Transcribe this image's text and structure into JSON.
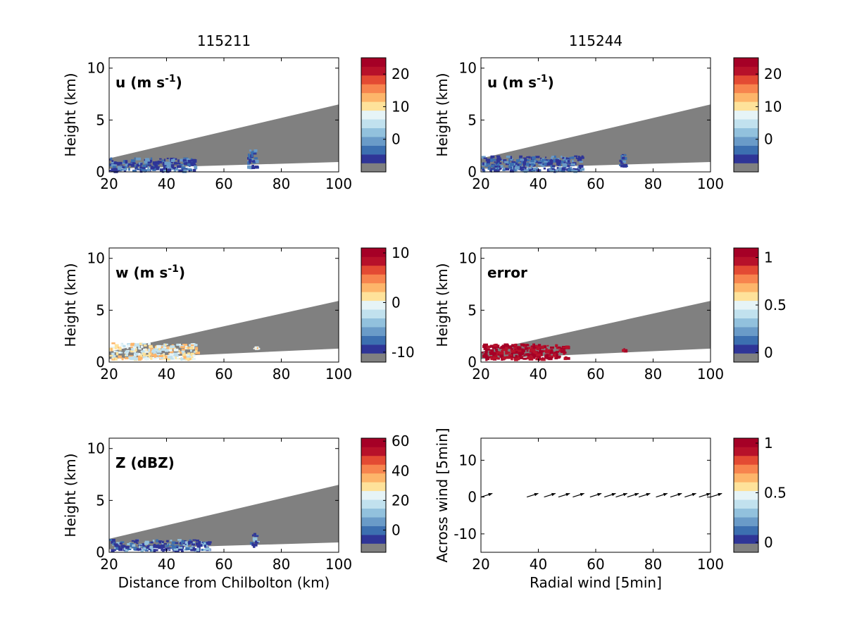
{
  "colors": {
    "gray": "#808080",
    "scale": [
      "#2f3597",
      "#3c6fb0",
      "#6a9bc8",
      "#92c1dd",
      "#c1e1ee",
      "#e6f4f7",
      "#fee29a",
      "#fdb56a",
      "#f7844e",
      "#e34a33",
      "#b7112a",
      "#a50026"
    ]
  },
  "figure": {
    "column_titles": [
      "115211",
      "115244"
    ]
  },
  "chart_data": [
    {
      "id": "u-115211",
      "type": "heatmap",
      "annotation": "u (m s⁻¹)",
      "ylabel": "Height (km)",
      "xlabel": "",
      "xlim": [
        20,
        100
      ],
      "ylim": [
        0,
        11
      ],
      "xticks": [
        "20",
        "40",
        "60",
        "80",
        "100"
      ],
      "yticks": [
        "0",
        "5",
        "10"
      ],
      "colorbar": {
        "range": [
          -10,
          25
        ],
        "ticks": [
          "20",
          "10",
          "0"
        ],
        "tick_values": [
          20,
          10,
          0
        ]
      },
      "beam_sector": {
        "lower": [
          0.3,
          0.95
        ],
        "upper": [
          1.3,
          6.5
        ]
      },
      "data_regions": [
        {
          "field": "strong-negative",
          "x_range": [
            20,
            50
          ],
          "height_range": [
            0.2,
            1.4
          ]
        },
        {
          "field": "strong-negative",
          "x_range": [
            68,
            71
          ],
          "height_range": [
            0.4,
            2.2
          ]
        }
      ]
    },
    {
      "id": "u-115244",
      "type": "heatmap",
      "annotation": "u (m s⁻¹)",
      "ylabel": "Height (km)",
      "xlabel": "",
      "xlim": [
        20,
        100
      ],
      "ylim": [
        0,
        11
      ],
      "xticks": [
        "20",
        "40",
        "60",
        "80",
        "100"
      ],
      "yticks": [
        "0",
        "5",
        "10"
      ],
      "colorbar": {
        "range": [
          -10,
          25
        ],
        "ticks": [
          "20",
          "10",
          "0"
        ],
        "tick_values": [
          20,
          10,
          0
        ]
      },
      "beam_sector": {
        "lower": [
          0.3,
          0.95
        ],
        "upper": [
          1.3,
          6.5
        ]
      },
      "data_regions": [
        {
          "field": "strong-negative",
          "x_range": [
            20,
            55
          ],
          "height_range": [
            0.2,
            1.6
          ]
        },
        {
          "field": "strong-negative",
          "x_range": [
            68,
            70
          ],
          "height_range": [
            0.6,
            2.0
          ]
        }
      ]
    },
    {
      "id": "w-115211",
      "type": "heatmap",
      "annotation": "w (m s⁻¹)",
      "ylabel": "Height (km)",
      "xlabel": "",
      "xlim": [
        20,
        100
      ],
      "ylim": [
        0,
        11
      ],
      "xticks": [
        "20",
        "40",
        "60",
        "80",
        "100"
      ],
      "yticks": [
        "0",
        "5",
        "10"
      ],
      "colorbar": {
        "range": [
          -12,
          11
        ],
        "ticks": [
          "10",
          "0",
          "-10"
        ],
        "tick_values": [
          10,
          0,
          -10
        ]
      },
      "beam_sector": {
        "lower": [
          0.3,
          1.3
        ],
        "upper": [
          1.0,
          5.9
        ]
      },
      "data_regions": [
        {
          "field": "weak-positive",
          "x_range": [
            20,
            50
          ],
          "height_range": [
            0.4,
            1.9
          ]
        },
        {
          "field": "weak-positive",
          "x_range": [
            70,
            71
          ],
          "height_range": [
            1.3,
            1.6
          ]
        }
      ]
    },
    {
      "id": "error-115244",
      "type": "heatmap",
      "annotation": "error",
      "ylabel": "Height (km)",
      "xlabel": "",
      "xlim": [
        20,
        100
      ],
      "ylim": [
        0,
        11
      ],
      "xticks": [
        "20",
        "40",
        "60",
        "80",
        "100"
      ],
      "yticks": [
        "0",
        "5",
        "10"
      ],
      "colorbar": {
        "range": [
          -0.1,
          1.1
        ],
        "ticks": [
          "1",
          "0.5",
          "0"
        ],
        "tick_values": [
          1,
          0.5,
          0
        ]
      },
      "beam_sector": {
        "lower": [
          0.3,
          1.3
        ],
        "upper": [
          1.0,
          5.9
        ]
      },
      "data_regions": [
        {
          "field": "maximum",
          "x_range": [
            20,
            50
          ],
          "height_range": [
            0.4,
            1.8
          ]
        },
        {
          "field": "maximum",
          "x_range": [
            69,
            70
          ],
          "height_range": [
            1.2,
            1.5
          ]
        }
      ]
    },
    {
      "id": "z-115211",
      "type": "heatmap",
      "annotation": "Z (dBZ)",
      "ylabel": "Height (km)",
      "xlabel": "Distance from Chilbolton (km)",
      "xlim": [
        20,
        100
      ],
      "ylim": [
        0,
        11
      ],
      "xticks": [
        "20",
        "40",
        "60",
        "80",
        "100"
      ],
      "yticks": [
        "0",
        "5",
        "10"
      ],
      "colorbar": {
        "range": [
          -15,
          62
        ],
        "ticks": [
          "60",
          "40",
          "20",
          "0"
        ],
        "tick_values": [
          60,
          40,
          20,
          0
        ]
      },
      "beam_sector": {
        "lower": [
          0.3,
          0.95
        ],
        "upper": [
          1.3,
          6.5
        ]
      },
      "data_regions": [
        {
          "field": "low",
          "x_range": [
            20,
            55
          ],
          "height_range": [
            0.3,
            1.3
          ]
        },
        {
          "field": "low",
          "x_range": [
            69,
            71
          ],
          "height_range": [
            0.6,
            1.9
          ]
        }
      ]
    },
    {
      "id": "wind-vectors",
      "type": "scatter",
      "annotation": "",
      "ylabel": "Across wind [5min]",
      "xlabel": "Radial wind [5min]",
      "xlim": [
        20,
        100
      ],
      "ylim": [
        -15,
        16
      ],
      "xticks": [
        "20",
        "40",
        "60",
        "80",
        "100"
      ],
      "yticks": [
        "-10",
        "0",
        "10"
      ],
      "y_tick_values": [
        -10,
        0,
        10
      ],
      "colorbar": {
        "range": [
          -0.1,
          1.05
        ],
        "ticks": [
          "1",
          "0.5",
          "0"
        ],
        "tick_values": [
          1,
          0.5,
          0
        ]
      },
      "vectors": {
        "x": [
          20,
          36,
          42,
          47,
          52,
          58,
          63,
          67,
          71,
          75,
          81,
          86,
          91,
          96,
          100
        ],
        "y": [
          0,
          0,
          0,
          0,
          0,
          0,
          0,
          0,
          0,
          0,
          0,
          0,
          0,
          0,
          0
        ],
        "dx": [
          4,
          4,
          4,
          4,
          4,
          4,
          4,
          4,
          4,
          4,
          4,
          4,
          4,
          4,
          4
        ],
        "dy": [
          1,
          1,
          1,
          1,
          1,
          1,
          1,
          1,
          1,
          1,
          1,
          1,
          1,
          1,
          1
        ]
      }
    }
  ]
}
